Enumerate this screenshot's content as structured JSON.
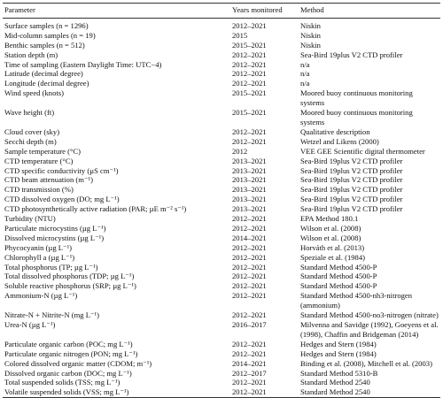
{
  "table": {
    "header": [
      "Parameter",
      "Years monitored",
      "Method"
    ],
    "rows": [
      [
        "Surface samples (n = 1296)",
        "2012–2021",
        "Niskin"
      ],
      [
        "Mid-column samples (n = 19)",
        "2015",
        "Niskin"
      ],
      [
        "Benthic samples (n = 512)",
        "2015–2021",
        "Niskin"
      ],
      [
        "Station depth (m)",
        "2012–2021",
        "Sea-Bird 19plus V2 CTD profiler"
      ],
      [
        "Time of sampling (Eastern Daylight Time: UTC−4)",
        "2012–2021",
        "n/a"
      ],
      [
        "Latitude (decimal degree)",
        "2012–2021",
        "n/a"
      ],
      [
        "Longitude (decimal degree)",
        "2012–2021",
        "n/a"
      ],
      [
        "Wind speed (knots)",
        "2015–2021",
        "Moored buoy continuous monitoring systems"
      ],
      [
        "Wave height (ft)",
        "2015–2021",
        "Moored buoy continuous monitoring systems"
      ],
      [
        "Cloud cover (sky)",
        "2012–2021",
        "Qualitative description"
      ],
      [
        "Secchi depth (m)",
        "2012–2021",
        "Wetzel and Likens (2000)"
      ],
      [
        "Sample temperature (°C)",
        "2012",
        "VEE GEE Scientific digital thermometer"
      ],
      [
        "CTD temperature (°C)",
        "2013–2021",
        "Sea-Bird 19plus V2 CTD profiler"
      ],
      [
        "CTD specific conductivity (µS cm⁻¹)",
        "2013–2021",
        "Sea-Bird 19plus V2 CTD profiler"
      ],
      [
        "CTD beam attenuation (m⁻¹)",
        "2013–2021",
        "Sea-Bird 19plus V2 CTD profiler"
      ],
      [
        "CTD transmission (%)",
        "2013–2021",
        "Sea-Bird 19plus V2 CTD profiler"
      ],
      [
        "CTD dissolved oxygen (DO; mg L⁻¹)",
        "2013–2021",
        "Sea-Bird 19plus V2 CTD profiler"
      ],
      [
        "CTD photosynthetically active radiation (PAR; µE m⁻² s⁻¹)",
        "2013–2021",
        "Sea-Bird 19plus V2 CTD profiler"
      ],
      [
        "Turbidity (NTU)",
        "2012–2021",
        "EPA Method 180.1"
      ],
      [
        "Particulate microcystins (µg L⁻¹)",
        "2012–2021",
        "Wilson et al. (2008)"
      ],
      [
        "Dissolved microcystins (µg L⁻¹)",
        "2014–2021",
        "Wilson et al. (2008)"
      ],
      [
        "Phycocyanin (µg L⁻¹)",
        "2012–2021",
        "Horváth et al. (2013)"
      ],
      [
        "Chlorophyll a (µg L⁻¹)",
        "2012–2021",
        "Speziale et al. (1984)"
      ],
      [
        "Total phosphorus (TP; µg L⁻¹)",
        "2012–2021",
        "Standard Method 4500-P"
      ],
      [
        "Total dissolved phosphorus (TDP; µg L⁻¹)",
        "2012–2021",
        "Standard Method 4500-P"
      ],
      [
        "Soluble reactive phosphorus (SRP; µg L⁻¹)",
        "2012–2021",
        "Standard Method 4500-P"
      ],
      [
        "Ammonium-N (µg L⁻¹)",
        "2012–2021",
        "Standard Method 4500-nh3-nitrogen (ammonium)"
      ],
      [
        "Nitrate-N + Nitrite-N (mg L⁻¹)",
        "2012–2021",
        "Standard Method 4500-no3-nitrogen (nitrate)"
      ],
      [
        "Urea-N (µg L⁻¹)",
        "2016–2017",
        "Milvenna and Savidge (1992), Goeyens et al. (1998), Chaffin and Bridgeman (2014)"
      ],
      [
        "Particulate organic carbon (POC; mg L⁻¹)",
        "2012–2021",
        "Hedges and Stern (1984)"
      ],
      [
        "Particulate organic nitrogen (PON; mg L⁻¹)",
        "2012–2021",
        "Hedges and Stern (1984)"
      ],
      [
        "Colored dissolved organic matter (CDOM; m⁻¹)",
        "2014–2021",
        "Binding et al. (2008), Mitchell et al. (2003)"
      ],
      [
        "Dissolved organic carbon (DOC; mg L⁻¹)",
        "2012–2017",
        "Standard Method 5310-B"
      ],
      [
        "Total suspended solids (TSS; mg L⁻¹)",
        "2012–2021",
        "Standard Method 2540"
      ],
      [
        "Volatile suspended solids (VSS; mg L⁻¹)",
        "2012–2021",
        "Standard Method 2540"
      ]
    ]
  }
}
